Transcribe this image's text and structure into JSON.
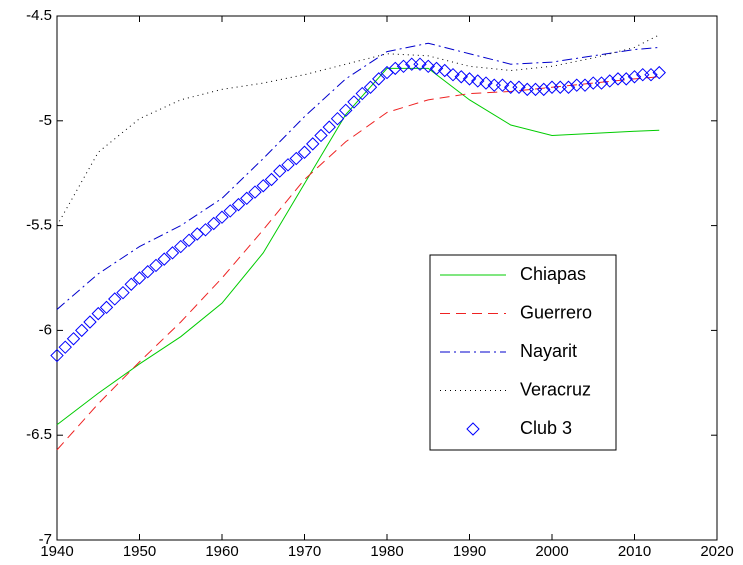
{
  "chart_data": {
    "type": "line",
    "x": [
      1940,
      1945,
      1950,
      1955,
      1960,
      1965,
      1970,
      1975,
      1980,
      1985,
      1990,
      1995,
      2000,
      2005,
      2010,
      2013
    ],
    "series": [
      {
        "name": "Chiapas",
        "color": "#00cc00",
        "style": "solid",
        "values": [
          -6.45,
          -6.3,
          -6.16,
          -6.03,
          -5.87,
          -5.63,
          -5.3,
          -4.97,
          -4.75,
          -4.75,
          -4.9,
          -5.02,
          -5.07,
          -5.06,
          -5.05,
          -5.045
        ]
      },
      {
        "name": "Guerrero",
        "color": "#ee2222",
        "style": "dashed",
        "values": [
          -6.57,
          -6.35,
          -6.15,
          -5.96,
          -5.75,
          -5.52,
          -5.28,
          -5.1,
          -4.96,
          -4.9,
          -4.87,
          -4.86,
          -4.84,
          -4.82,
          -4.8,
          -4.79
        ]
      },
      {
        "name": "Nayarit",
        "color": "#0000cc",
        "style": "dashdot",
        "values": [
          -5.9,
          -5.73,
          -5.6,
          -5.5,
          -5.37,
          -5.18,
          -4.98,
          -4.8,
          -4.67,
          -4.63,
          -4.68,
          -4.73,
          -4.72,
          -4.69,
          -4.66,
          -4.65
        ]
      },
      {
        "name": "Veracruz",
        "color": "#000000",
        "style": "dotted",
        "values": [
          -5.5,
          -5.15,
          -4.99,
          -4.9,
          -4.85,
          -4.82,
          -4.78,
          -4.73,
          -4.68,
          -4.69,
          -4.74,
          -4.76,
          -4.74,
          -4.7,
          -4.65,
          -4.59
        ]
      },
      {
        "name": "Club 3",
        "color": "#0000ff",
        "marker": "diamond",
        "x": [
          1940,
          1941,
          1942,
          1943,
          1944,
          1945,
          1946,
          1947,
          1948,
          1949,
          1950,
          1951,
          1952,
          1953,
          1954,
          1955,
          1956,
          1957,
          1958,
          1959,
          1960,
          1961,
          1962,
          1963,
          1964,
          1965,
          1966,
          1967,
          1968,
          1969,
          1970,
          1971,
          1972,
          1973,
          1974,
          1975,
          1976,
          1977,
          1978,
          1979,
          1980,
          1981,
          1982,
          1983,
          1984,
          1985,
          1986,
          1987,
          1988,
          1989,
          1990,
          1991,
          1992,
          1993,
          1994,
          1995,
          1996,
          1997,
          1998,
          1999,
          2000,
          2001,
          2002,
          2003,
          2004,
          2005,
          2006,
          2007,
          2008,
          2009,
          2010,
          2011,
          2012,
          2013
        ],
        "values": [
          -6.12,
          -6.08,
          -6.04,
          -6.0,
          -5.96,
          -5.92,
          -5.89,
          -5.85,
          -5.82,
          -5.78,
          -5.75,
          -5.72,
          -5.69,
          -5.66,
          -5.63,
          -5.6,
          -5.57,
          -5.54,
          -5.52,
          -5.49,
          -5.46,
          -5.43,
          -5.4,
          -5.37,
          -5.34,
          -5.31,
          -5.28,
          -5.24,
          -5.21,
          -5.18,
          -5.15,
          -5.11,
          -5.07,
          -5.03,
          -4.99,
          -4.95,
          -4.91,
          -4.87,
          -4.84,
          -4.8,
          -4.77,
          -4.75,
          -4.74,
          -4.73,
          -4.73,
          -4.74,
          -4.75,
          -4.76,
          -4.78,
          -4.79,
          -4.8,
          -4.81,
          -4.82,
          -4.83,
          -4.83,
          -4.84,
          -4.84,
          -4.85,
          -4.85,
          -4.85,
          -4.84,
          -4.84,
          -4.84,
          -4.83,
          -4.83,
          -4.82,
          -4.82,
          -4.81,
          -4.8,
          -4.8,
          -4.79,
          -4.78,
          -4.78,
          -4.77
        ]
      }
    ],
    "xlim": [
      1940,
      2020
    ],
    "xticks": [
      1940,
      1950,
      1960,
      1970,
      1980,
      1990,
      2000,
      2010,
      2020
    ],
    "ylim": [
      -7,
      -4.5
    ],
    "yticks": [
      -7,
      -6.5,
      -6,
      -5.5,
      -5,
      -4.5
    ],
    "grid": false,
    "legend": "lower right"
  }
}
